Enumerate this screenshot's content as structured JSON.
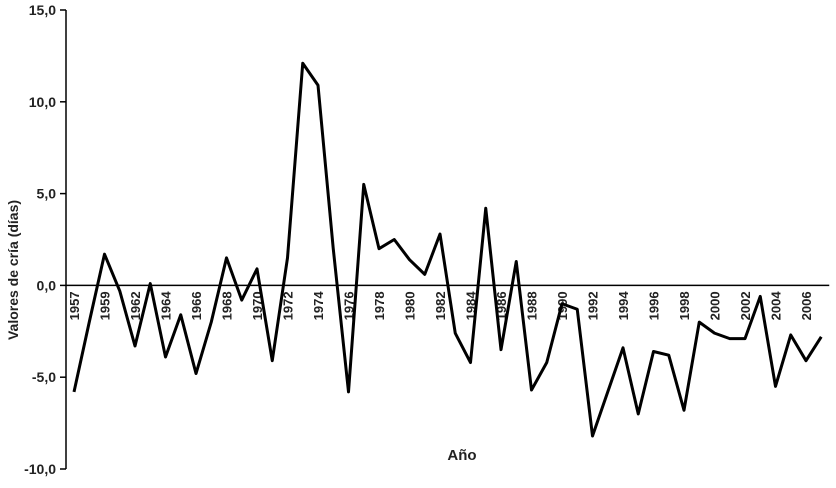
{
  "chart_data": {
    "type": "line",
    "xlabel": "Año",
    "ylabel": "Valores de cría (días)",
    "categories": [
      "1957",
      null,
      "1959",
      null,
      "1962",
      null,
      "1964",
      null,
      "1966",
      null,
      "1968",
      null,
      "1970",
      null,
      "1972",
      null,
      "1974",
      null,
      "1976",
      null,
      "1978",
      null,
      "1980",
      null,
      "1982",
      null,
      "1984",
      null,
      "1986",
      null,
      "1988",
      null,
      "1990",
      null,
      "1992",
      null,
      "1994",
      null,
      "1996",
      null,
      "1998",
      null,
      "2000",
      null,
      "2002",
      null,
      "2004",
      null,
      "2006",
      null
    ],
    "series": [
      {
        "name": "Valores de cría",
        "color": "#000000",
        "values": [
          -5.8,
          -2.0,
          1.7,
          -0.3,
          -3.3,
          0.1,
          -3.9,
          -1.6,
          -4.8,
          -2.0,
          1.5,
          -0.8,
          0.9,
          -4.1,
          1.5,
          12.1,
          10.9,
          2.0,
          -5.8,
          5.5,
          2.0,
          2.5,
          1.4,
          0.6,
          2.8,
          -2.6,
          -4.2,
          4.2,
          -3.5,
          1.3,
          -5.7,
          -4.2,
          -1.0,
          -1.3,
          -8.2,
          -5.8,
          -3.4,
          -7.0,
          -3.6,
          -3.8,
          -6.8,
          -2.0,
          -2.6,
          -2.9,
          -2.9,
          -0.6,
          -5.5,
          -2.7,
          -4.1,
          -2.8
        ]
      }
    ],
    "ylim": [
      -10,
      15
    ],
    "yticks": [
      {
        "value": -10,
        "label": "-10,0"
      },
      {
        "value": -5,
        "label": "-5,0"
      },
      {
        "value": 0,
        "label": "0,0"
      },
      {
        "value": 5,
        "label": "5,0"
      },
      {
        "value": 10,
        "label": "10,0"
      },
      {
        "value": 15,
        "label": "15,0"
      }
    ],
    "grid": false
  }
}
